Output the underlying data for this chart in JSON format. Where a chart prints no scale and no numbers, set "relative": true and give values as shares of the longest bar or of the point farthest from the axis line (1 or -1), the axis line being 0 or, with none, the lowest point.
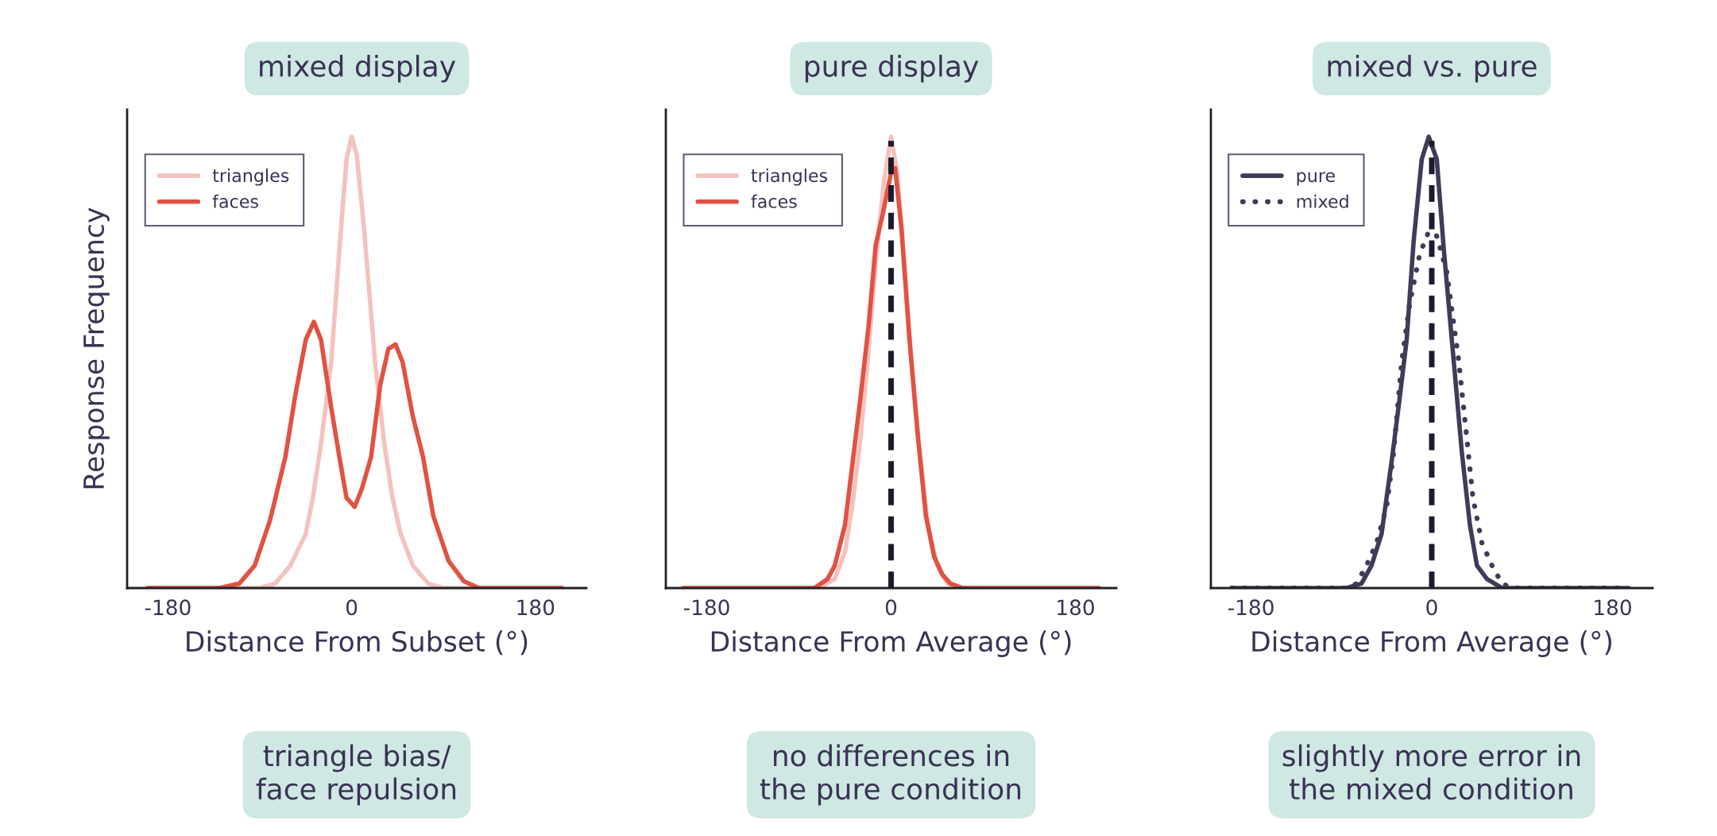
{
  "chart_data": [
    {
      "type": "line",
      "title": "mixed display",
      "xlabel": "Distance From Subset (°)",
      "ylabel": "Response Frequency",
      "relative": true,
      "xlim": [
        -220,
        230
      ],
      "xticks": [
        -180,
        0,
        180
      ],
      "tick_labels": "x",
      "grid": false,
      "legend": "top left",
      "marker": "none",
      "series": [
        {
          "name": "triangles",
          "color": "#f4c2bd",
          "line_style": "solid",
          "x": [
            -200,
            -90,
            -75,
            -60,
            -45,
            -38,
            -30,
            -20,
            -12,
            -5,
            0,
            5,
            12,
            23,
            32,
            40,
            48,
            60,
            75,
            90,
            206
          ],
          "values": [
            0,
            0,
            0.01,
            0.05,
            0.12,
            0.2,
            0.32,
            0.5,
            0.75,
            0.95,
            1,
            0.96,
            0.8,
            0.5,
            0.32,
            0.2,
            0.12,
            0.05,
            0.01,
            0,
            0
          ]
        },
        {
          "name": "faces",
          "color": "#e05243",
          "line_style": "solid",
          "x": [
            -200,
            -130,
            -110,
            -95,
            -80,
            -65,
            -55,
            -45,
            -37,
            -30,
            -20,
            -12,
            -5,
            3,
            10,
            19,
            28,
            36,
            43,
            50,
            60,
            70,
            80,
            95,
            110,
            125,
            206
          ],
          "values": [
            0,
            0,
            0.01,
            0.05,
            0.15,
            0.29,
            0.43,
            0.55,
            0.59,
            0.55,
            0.4,
            0.29,
            0.2,
            0.18,
            0.22,
            0.29,
            0.45,
            0.53,
            0.54,
            0.5,
            0.38,
            0.29,
            0.16,
            0.06,
            0.015,
            0,
            0
          ]
        }
      ],
      "annotations": [
        "triangle bias/\nface repulsion"
      ]
    },
    {
      "type": "line",
      "title": "pure display",
      "xlabel": "Distance From Average (°)",
      "relative": true,
      "xlim": [
        -220,
        220
      ],
      "xticks": [
        -180,
        0,
        180
      ],
      "tick_labels": "x",
      "grid": false,
      "legend": "top left",
      "marker": "none",
      "ref_lines": [
        {
          "axis": "x",
          "value": 0,
          "color": "#1e1a2e",
          "line_style": "dashed"
        }
      ],
      "series": [
        {
          "name": "triangles",
          "color": "#f4c2bd",
          "line_style": "solid",
          "x": [
            -203,
            -70,
            -55,
            -45,
            -38,
            -30,
            -23,
            -15,
            -7,
            0,
            6,
            13,
            20,
            28,
            36,
            45,
            55,
            70,
            203
          ],
          "values": [
            0,
            0,
            0.02,
            0.08,
            0.18,
            0.33,
            0.5,
            0.72,
            0.9,
            1,
            0.92,
            0.72,
            0.5,
            0.3,
            0.14,
            0.05,
            0.01,
            0,
            0
          ]
        },
        {
          "name": "faces",
          "color": "#e05243",
          "line_style": "solid",
          "x": [
            -203,
            -75,
            -62,
            -55,
            -45,
            -38,
            -30,
            -22,
            -15,
            -8,
            0,
            4,
            10,
            18,
            26,
            34,
            42,
            50,
            58,
            70,
            203
          ],
          "values": [
            0,
            0,
            0.02,
            0.05,
            0.14,
            0.27,
            0.42,
            0.58,
            0.76,
            0.83,
            0.92,
            0.93,
            0.8,
            0.55,
            0.34,
            0.16,
            0.07,
            0.03,
            0.01,
            0,
            0
          ]
        }
      ],
      "annotations": [
        "no differences in\nthe pure condition"
      ]
    },
    {
      "type": "line",
      "title": "mixed vs. pure",
      "xlabel": "Distance From Average (°)",
      "relative": true,
      "xlim": [
        -220,
        220
      ],
      "xticks": [
        -180,
        0,
        180
      ],
      "tick_labels": "x",
      "grid": false,
      "legend": "top left",
      "marker": "none",
      "ref_lines": [
        {
          "axis": "x",
          "value": 0,
          "color": "#1e1a2e",
          "line_style": "dashed"
        }
      ],
      "series": [
        {
          "name": "pure",
          "color": "#433958",
          "line_style": "solid",
          "x": [
            -199,
            -85,
            -70,
            -60,
            -50,
            -40,
            -32,
            -25,
            -18,
            -10,
            -3,
            5,
            12,
            22,
            30,
            38,
            45,
            55,
            70,
            196
          ],
          "values": [
            0,
            0,
            0.01,
            0.05,
            0.12,
            0.28,
            0.42,
            0.55,
            0.77,
            0.95,
            1,
            0.95,
            0.75,
            0.5,
            0.3,
            0.14,
            0.05,
            0.02,
            0,
            0
          ]
        },
        {
          "name": "mixed",
          "color": "#433958",
          "line_style": "dotted",
          "x": [
            -199,
            -85,
            -75,
            -65,
            -55,
            -45,
            -38,
            -30,
            -22,
            -12,
            -3,
            5,
            15,
            27,
            35,
            41,
            50,
            60,
            70,
            80,
            196
          ],
          "values": [
            0,
            0,
            0.01,
            0.05,
            0.1,
            0.18,
            0.3,
            0.5,
            0.63,
            0.74,
            0.79,
            0.78,
            0.7,
            0.5,
            0.33,
            0.2,
            0.1,
            0.05,
            0.01,
            0,
            0
          ]
        }
      ],
      "annotations": [
        "slightly more error in\nthe mixed condition"
      ]
    }
  ]
}
